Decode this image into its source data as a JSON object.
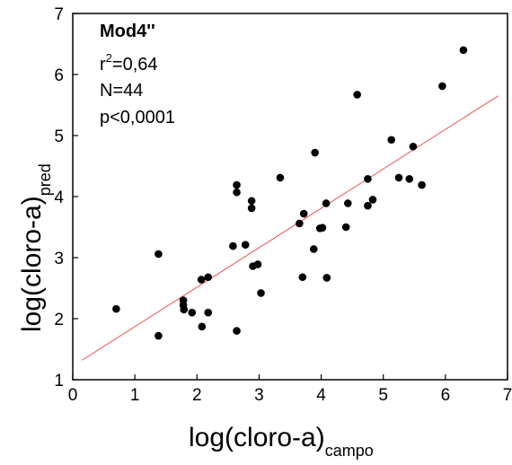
{
  "chart_data": {
    "type": "scatter",
    "xlabel": {
      "main": "log(cloro-a)",
      "sub": "campo"
    },
    "ylabel": {
      "main": "log(cloro-a)",
      "sub": "pred"
    },
    "xlim": [
      0,
      7
    ],
    "ylim": [
      1,
      7
    ],
    "xticks": [
      "0",
      "1",
      "2",
      "3",
      "4",
      "5",
      "6",
      "7"
    ],
    "yticks": [
      "1",
      "2",
      "3",
      "4",
      "5",
      "6",
      "7"
    ],
    "grid": false,
    "annotations": {
      "title": "Mod4''",
      "r2": {
        "prefix": "r",
        "sup": "2",
        "suffix": "=0,64"
      },
      "n": "N=44",
      "p": "p<0,0001"
    },
    "fit_line": {
      "x1": 0.15,
      "y1": 1.32,
      "x2": 6.85,
      "y2": 5.65,
      "color": "#e8524f"
    },
    "point_color": "#000000",
    "points": [
      [
        0.7,
        2.16
      ],
      [
        1.38,
        3.06
      ],
      [
        1.38,
        1.72
      ],
      [
        1.78,
        2.3
      ],
      [
        1.78,
        2.22
      ],
      [
        1.79,
        2.15
      ],
      [
        1.92,
        2.1
      ],
      [
        2.07,
        2.64
      ],
      [
        2.08,
        1.87
      ],
      [
        2.18,
        2.68
      ],
      [
        2.18,
        2.1
      ],
      [
        2.58,
        3.19
      ],
      [
        2.64,
        4.19
      ],
      [
        2.64,
        4.07
      ],
      [
        2.64,
        1.8
      ],
      [
        2.78,
        3.21
      ],
      [
        2.88,
        3.93
      ],
      [
        2.88,
        3.81
      ],
      [
        2.9,
        2.86
      ],
      [
        2.98,
        2.89
      ],
      [
        3.03,
        2.42
      ],
      [
        3.34,
        4.31
      ],
      [
        3.65,
        3.56
      ],
      [
        3.7,
        2.68
      ],
      [
        3.72,
        3.72
      ],
      [
        3.88,
        3.14
      ],
      [
        3.9,
        4.72
      ],
      [
        3.98,
        3.48
      ],
      [
        4.02,
        3.49
      ],
      [
        4.08,
        3.89
      ],
      [
        4.09,
        2.67
      ],
      [
        4.4,
        3.5
      ],
      [
        4.43,
        3.89
      ],
      [
        4.58,
        5.67
      ],
      [
        4.75,
        4.29
      ],
      [
        4.75,
        3.85
      ],
      [
        4.83,
        3.95
      ],
      [
        5.13,
        4.93
      ],
      [
        5.25,
        4.31
      ],
      [
        5.42,
        4.29
      ],
      [
        5.48,
        4.82
      ],
      [
        5.62,
        4.19
      ],
      [
        5.95,
        5.81
      ],
      [
        6.29,
        6.4
      ]
    ]
  }
}
